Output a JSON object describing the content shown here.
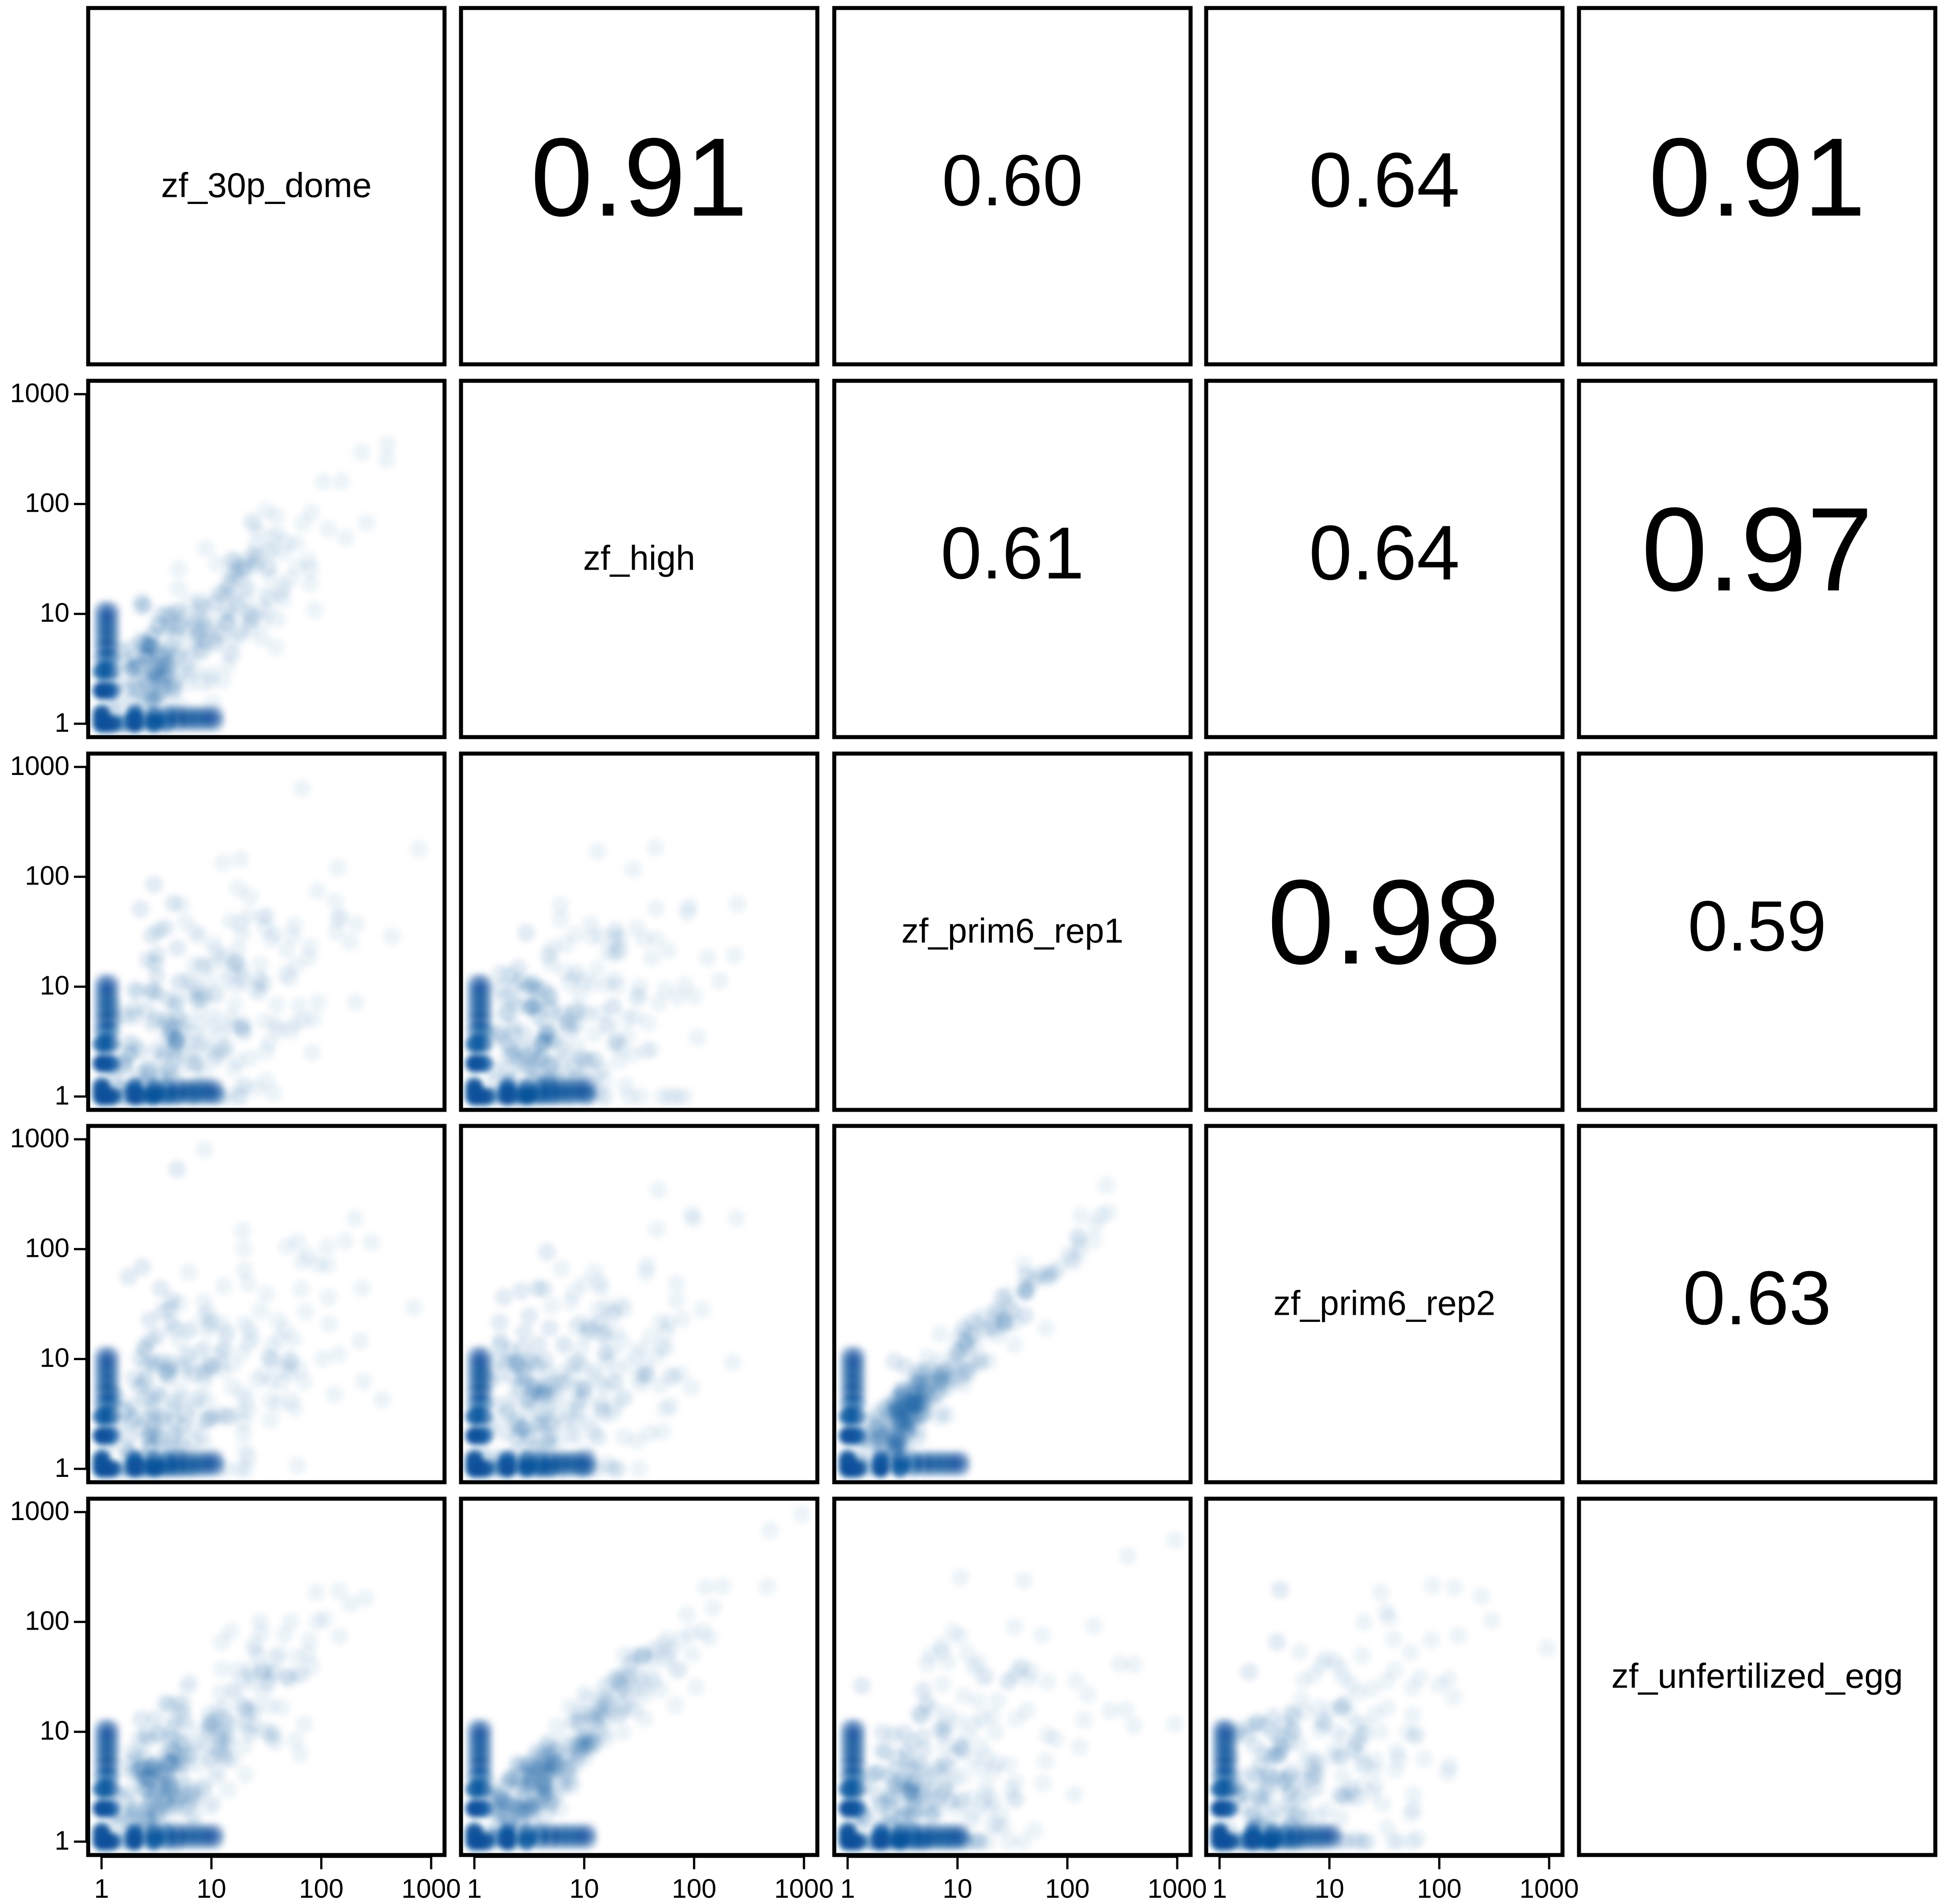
{
  "chart_data": {
    "type": "scatter-matrix",
    "title": "",
    "variables": [
      "zf_30p_dome",
      "zf_high",
      "zf_prim6_rep1",
      "zf_prim6_rep2",
      "zf_unfertilized_egg"
    ],
    "scale": "log10",
    "axis_range": [
      1,
      1000
    ],
    "ticks": [
      1,
      10,
      100,
      1000
    ],
    "tick_labels": [
      "1",
      "10",
      "100",
      "1000"
    ],
    "grid": false,
    "legend": "none",
    "point_color": "#08519c",
    "correlations": [
      {
        "row": 0,
        "col": 1,
        "label": "0.91",
        "value": 0.91
      },
      {
        "row": 0,
        "col": 2,
        "label": "0.60",
        "value": 0.6
      },
      {
        "row": 0,
        "col": 3,
        "label": "0.64",
        "value": 0.64
      },
      {
        "row": 0,
        "col": 4,
        "label": "0.91",
        "value": 0.91
      },
      {
        "row": 1,
        "col": 2,
        "label": "0.61",
        "value": 0.61
      },
      {
        "row": 1,
        "col": 3,
        "label": "0.64",
        "value": 0.64
      },
      {
        "row": 1,
        "col": 4,
        "label": "0.97",
        "value": 0.97
      },
      {
        "row": 2,
        "col": 3,
        "label": "0.98",
        "value": 0.98
      },
      {
        "row": 2,
        "col": 4,
        "label": "0.59",
        "value": 0.59
      },
      {
        "row": 3,
        "col": 4,
        "label": "0.63",
        "value": 0.63
      }
    ],
    "scatter_panels": [
      {
        "row": 1,
        "col": 0,
        "x": "zf_30p_dome",
        "y": "zf_high",
        "r": 0.91
      },
      {
        "row": 2,
        "col": 0,
        "x": "zf_30p_dome",
        "y": "zf_prim6_rep1",
        "r": 0.6
      },
      {
        "row": 2,
        "col": 1,
        "x": "zf_high",
        "y": "zf_prim6_rep1",
        "r": 0.61
      },
      {
        "row": 3,
        "col": 0,
        "x": "zf_30p_dome",
        "y": "zf_prim6_rep2",
        "r": 0.64
      },
      {
        "row": 3,
        "col": 1,
        "x": "zf_high",
        "y": "zf_prim6_rep2",
        "r": 0.64
      },
      {
        "row": 3,
        "col": 2,
        "x": "zf_prim6_rep1",
        "y": "zf_prim6_rep2",
        "r": 0.98
      },
      {
        "row": 4,
        "col": 0,
        "x": "zf_30p_dome",
        "y": "zf_unfertilized_egg",
        "r": 0.91
      },
      {
        "row": 4,
        "col": 1,
        "x": "zf_high",
        "y": "zf_unfertilized_egg",
        "r": 0.97
      },
      {
        "row": 4,
        "col": 2,
        "x": "zf_prim6_rep1",
        "y": "zf_unfertilized_egg",
        "r": 0.59
      },
      {
        "row": 4,
        "col": 3,
        "x": "zf_prim6_rep2",
        "y": "zf_unfertilized_egg",
        "r": 0.63
      }
    ]
  }
}
